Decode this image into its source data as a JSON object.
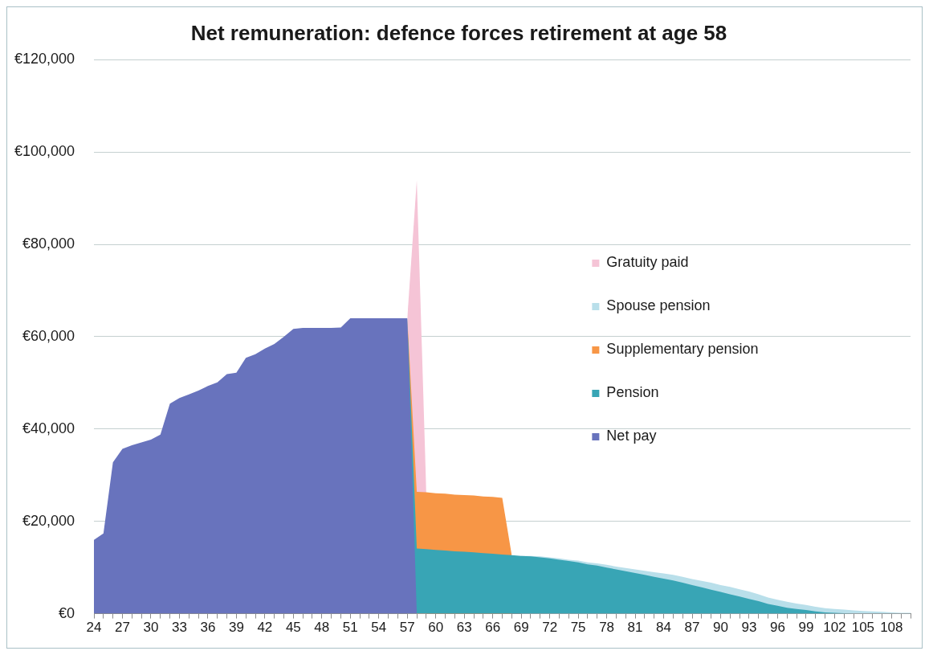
{
  "chart_data": {
    "type": "area",
    "title": "Net remuneration: defence forces retirement at age 58",
    "categories": [
      "24",
      null,
      null,
      "27",
      null,
      null,
      "30",
      null,
      null,
      "33",
      null,
      null,
      "36",
      null,
      null,
      "39",
      null,
      null,
      "42",
      null,
      null,
      "45",
      null,
      null,
      "48",
      null,
      null,
      "51",
      null,
      null,
      "54",
      null,
      null,
      "57",
      null,
      null,
      "60",
      null,
      null,
      "63",
      null,
      null,
      "66",
      null,
      null,
      "69",
      null,
      null,
      "72",
      null,
      null,
      "75",
      null,
      null,
      "78",
      null,
      null,
      "81",
      null,
      null,
      "84",
      null,
      null,
      "87",
      null,
      null,
      "90",
      null,
      null,
      "93",
      null,
      null,
      "96",
      null,
      null,
      "99",
      null,
      null,
      "102",
      null,
      null,
      "105",
      null,
      null,
      "108",
      null,
      null
    ],
    "series": [
      {
        "name": "Net pay",
        "color": "#6873bd",
        "values": [
          16000,
          17400,
          32800,
          35700,
          36500,
          37100,
          37700,
          38800,
          45500,
          46700,
          47500,
          48300,
          49300,
          50100,
          51900,
          52200,
          55400,
          56200,
          57400,
          58400,
          60000,
          61700,
          61900,
          61900,
          61900,
          61900,
          62000,
          64000,
          64000,
          64000,
          64000,
          64000,
          64000,
          64000,
          0,
          null,
          null,
          null,
          null,
          null,
          null,
          null,
          null,
          null,
          null,
          null,
          null,
          null,
          null,
          null,
          null,
          null,
          null,
          null,
          null,
          null,
          null,
          null,
          null,
          null,
          null,
          null,
          null,
          null,
          null,
          null,
          null,
          null,
          null,
          null,
          null,
          null,
          null,
          null,
          null,
          null,
          null,
          null,
          null,
          null,
          null,
          null,
          null,
          null,
          null,
          null,
          null
        ]
      },
      {
        "name": "Pension",
        "color": "#38a5b5",
        "values": [
          null,
          null,
          null,
          null,
          null,
          null,
          null,
          null,
          null,
          null,
          null,
          null,
          null,
          null,
          null,
          null,
          null,
          null,
          null,
          null,
          null,
          null,
          null,
          null,
          null,
          null,
          null,
          null,
          null,
          null,
          null,
          null,
          null,
          0,
          14100,
          14000,
          13800,
          13700,
          13500,
          13400,
          13300,
          13100,
          13000,
          12800,
          12700,
          12500,
          12400,
          12200,
          12000,
          11700,
          11400,
          11100,
          10700,
          10400,
          10000,
          9600,
          9200,
          8800,
          8400,
          8000,
          7600,
          7200,
          6700,
          6200,
          5700,
          5200,
          4700,
          4200,
          3700,
          3200,
          2700,
          2100,
          1700,
          1300,
          1000,
          800,
          500,
          300,
          200,
          100,
          0,
          0,
          0,
          0,
          0,
          0,
          0
        ]
      },
      {
        "name": "Supplementary pension",
        "color": "#f79646",
        "values": [
          null,
          null,
          null,
          null,
          null,
          null,
          null,
          null,
          null,
          null,
          null,
          null,
          null,
          null,
          null,
          null,
          null,
          null,
          null,
          null,
          null,
          null,
          null,
          null,
          null,
          null,
          null,
          null,
          null,
          null,
          null,
          null,
          null,
          0,
          12300,
          12300,
          12300,
          12300,
          12300,
          12300,
          12300,
          12300,
          12300,
          12300,
          0,
          null,
          null,
          null,
          null,
          null,
          null,
          null,
          null,
          null,
          null,
          null,
          null,
          null,
          null,
          null,
          null,
          null,
          null,
          null,
          null,
          null,
          null,
          null,
          null,
          null,
          null,
          null,
          null,
          null,
          null,
          null,
          null,
          null,
          null,
          null,
          null,
          null,
          null,
          null,
          null,
          null,
          null
        ]
      },
      {
        "name": "Spouse pension",
        "color": "#b9dfea",
        "values": [
          null,
          null,
          null,
          null,
          null,
          null,
          null,
          null,
          null,
          null,
          null,
          null,
          null,
          null,
          null,
          null,
          null,
          null,
          null,
          null,
          null,
          null,
          null,
          null,
          null,
          null,
          null,
          null,
          null,
          null,
          null,
          null,
          null,
          null,
          null,
          null,
          null,
          null,
          null,
          null,
          null,
          null,
          null,
          null,
          null,
          0,
          100,
          200,
          200,
          300,
          300,
          400,
          400,
          500,
          600,
          600,
          700,
          800,
          900,
          1000,
          1100,
          1200,
          1300,
          1300,
          1400,
          1500,
          1500,
          1600,
          1600,
          1600,
          1500,
          1400,
          1300,
          1300,
          1200,
          1100,
          1000,
          900,
          800,
          800,
          700,
          600,
          500,
          400,
          300,
          200,
          200
        ]
      },
      {
        "name": "Gratuity paid",
        "color": "#f5c4d6",
        "values": [
          null,
          null,
          null,
          null,
          null,
          null,
          null,
          null,
          null,
          null,
          null,
          null,
          null,
          null,
          null,
          null,
          null,
          null,
          null,
          null,
          null,
          null,
          null,
          null,
          null,
          null,
          null,
          null,
          null,
          null,
          null,
          null,
          null,
          0,
          67500,
          0,
          null,
          null,
          null,
          null,
          null,
          null,
          null,
          null,
          null,
          null,
          null,
          null,
          null,
          null,
          null,
          null,
          null,
          null,
          null,
          null,
          null,
          null,
          null,
          null,
          null,
          null,
          null,
          null,
          null,
          null,
          null,
          null,
          null,
          null,
          null,
          null,
          null,
          null,
          null,
          null,
          null,
          null,
          null,
          null,
          null,
          null,
          null,
          null,
          null,
          null,
          null
        ]
      }
    ],
    "stacked": true,
    "ylim": [
      0,
      120000
    ],
    "yticks": [
      {
        "value": 0,
        "label": "€0"
      },
      {
        "value": 20000,
        "label": "€20,000"
      },
      {
        "value": 40000,
        "label": "€40,000"
      },
      {
        "value": 60000,
        "label": "€60,000"
      },
      {
        "value": 80000,
        "label": "€80,000"
      },
      {
        "value": 100000,
        "label": "€100,000"
      },
      {
        "value": 120000,
        "label": "€120,000"
      }
    ],
    "grid": "y",
    "legend": "right"
  }
}
